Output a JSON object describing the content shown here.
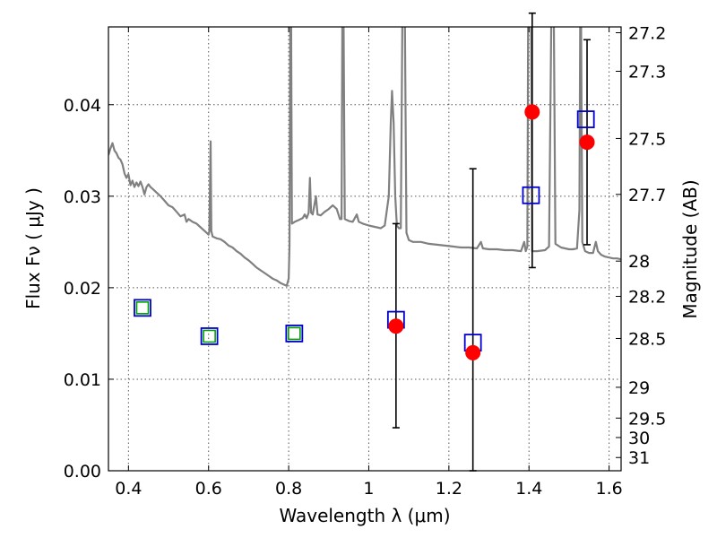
{
  "chart_data": {
    "type": "scatter",
    "title": "",
    "xlabel": "Wavelength  λ (μm)",
    "ylabel_left": "Flux  Fν  ( μJy )",
    "ylabel_right": "Magnitude (AB)",
    "xlim": [
      0.35,
      1.63
    ],
    "ylim": [
      0.0,
      0.0485
    ],
    "grid": true,
    "legend": "none",
    "x_ticks": [
      {
        "value": 0.4,
        "label": "0.4"
      },
      {
        "value": 0.6,
        "label": "0.6"
      },
      {
        "value": 0.8,
        "label": "0.8"
      },
      {
        "value": 1.0,
        "label": "1"
      },
      {
        "value": 1.2,
        "label": "1.2"
      },
      {
        "value": 1.4,
        "label": "1.4"
      },
      {
        "value": 1.6,
        "label": "1.6"
      }
    ],
    "y_ticks": [
      {
        "value": 0.0,
        "label": "0.00"
      },
      {
        "value": 0.01,
        "label": "0.01"
      },
      {
        "value": 0.02,
        "label": "0.02"
      },
      {
        "value": 0.03,
        "label": "0.03"
      },
      {
        "value": 0.04,
        "label": "0.04"
      }
    ],
    "right_ticks": [
      {
        "value": 27.2,
        "label": "27.2"
      },
      {
        "value": 27.3,
        "label": "27.3"
      },
      {
        "value": 27.5,
        "label": "27.5"
      },
      {
        "value": 27.7,
        "label": "27.7"
      },
      {
        "value": 28,
        "label": "28"
      },
      {
        "value": 28.2,
        "label": "28.2"
      },
      {
        "value": 28.5,
        "label": "28.5"
      },
      {
        "value": 29,
        "label": "29"
      },
      {
        "value": 29.5,
        "label": "29.5"
      },
      {
        "value": 30,
        "label": "30"
      },
      {
        "value": 31,
        "label": "31"
      }
    ],
    "series": [
      {
        "kind": "spectrum",
        "color": "#808080",
        "points": [
          [
            0.35,
            0.0345
          ],
          [
            0.355,
            0.0352
          ],
          [
            0.36,
            0.0358
          ],
          [
            0.365,
            0.035
          ],
          [
            0.37,
            0.0347
          ],
          [
            0.375,
            0.0342
          ],
          [
            0.38,
            0.034
          ],
          [
            0.385,
            0.0335
          ],
          [
            0.39,
            0.0325
          ],
          [
            0.395,
            0.032
          ],
          [
            0.4,
            0.0324
          ],
          [
            0.405,
            0.0312
          ],
          [
            0.41,
            0.0317
          ],
          [
            0.415,
            0.031
          ],
          [
            0.42,
            0.0315
          ],
          [
            0.425,
            0.0311
          ],
          [
            0.43,
            0.0316
          ],
          [
            0.435,
            0.031
          ],
          [
            0.44,
            0.0302
          ],
          [
            0.445,
            0.031
          ],
          [
            0.45,
            0.0313
          ],
          [
            0.455,
            0.031
          ],
          [
            0.46,
            0.0308
          ],
          [
            0.47,
            0.0304
          ],
          [
            0.48,
            0.03
          ],
          [
            0.49,
            0.0295
          ],
          [
            0.5,
            0.029
          ],
          [
            0.51,
            0.0288
          ],
          [
            0.52,
            0.0283
          ],
          [
            0.53,
            0.0278
          ],
          [
            0.54,
            0.028
          ],
          [
            0.545,
            0.0272
          ],
          [
            0.55,
            0.0275
          ],
          [
            0.56,
            0.0272
          ],
          [
            0.57,
            0.027
          ],
          [
            0.58,
            0.0266
          ],
          [
            0.59,
            0.0262
          ],
          [
            0.595,
            0.026
          ],
          [
            0.6,
            0.0258
          ],
          [
            0.602,
            0.0262
          ],
          [
            0.605,
            0.036
          ],
          [
            0.607,
            0.0262
          ],
          [
            0.61,
            0.0256
          ],
          [
            0.62,
            0.0254
          ],
          [
            0.63,
            0.0253
          ],
          [
            0.64,
            0.025
          ],
          [
            0.65,
            0.0246
          ],
          [
            0.66,
            0.0244
          ],
          [
            0.67,
            0.024
          ],
          [
            0.68,
            0.0237
          ],
          [
            0.69,
            0.0233
          ],
          [
            0.7,
            0.023
          ],
          [
            0.71,
            0.0226
          ],
          [
            0.72,
            0.0222
          ],
          [
            0.73,
            0.0219
          ],
          [
            0.74,
            0.0216
          ],
          [
            0.75,
            0.0213
          ],
          [
            0.76,
            0.021
          ],
          [
            0.77,
            0.0208
          ],
          [
            0.78,
            0.0205
          ],
          [
            0.79,
            0.0203
          ],
          [
            0.795,
            0.0202
          ],
          [
            0.8,
            0.021
          ],
          [
            0.802,
            0.0245
          ],
          [
            0.804,
            0.05
          ],
          [
            0.806,
            0.05
          ],
          [
            0.808,
            0.027
          ],
          [
            0.815,
            0.0272
          ],
          [
            0.825,
            0.0274
          ],
          [
            0.835,
            0.0276
          ],
          [
            0.84,
            0.028
          ],
          [
            0.845,
            0.0276
          ],
          [
            0.85,
            0.0282
          ],
          [
            0.853,
            0.032
          ],
          [
            0.856,
            0.0282
          ],
          [
            0.86,
            0.028
          ],
          [
            0.868,
            0.03
          ],
          [
            0.872,
            0.028
          ],
          [
            0.88,
            0.0279
          ],
          [
            0.89,
            0.0283
          ],
          [
            0.9,
            0.0286
          ],
          [
            0.91,
            0.029
          ],
          [
            0.92,
            0.0286
          ],
          [
            0.928,
            0.0275
          ],
          [
            0.932,
            0.0275
          ],
          [
            0.934,
            0.05
          ],
          [
            0.937,
            0.05
          ],
          [
            0.94,
            0.0275
          ],
          [
            0.95,
            0.0273
          ],
          [
            0.96,
            0.0272
          ],
          [
            0.97,
            0.028
          ],
          [
            0.975,
            0.0272
          ],
          [
            0.985,
            0.027
          ],
          [
            1.0,
            0.0268
          ],
          [
            1.01,
            0.0267
          ],
          [
            1.02,
            0.0266
          ],
          [
            1.03,
            0.0265
          ],
          [
            1.04,
            0.0268
          ],
          [
            1.05,
            0.03
          ],
          [
            1.055,
            0.038
          ],
          [
            1.058,
            0.0415
          ],
          [
            1.062,
            0.038
          ],
          [
            1.066,
            0.03
          ],
          [
            1.07,
            0.0268
          ],
          [
            1.075,
            0.0265
          ],
          [
            1.08,
            0.0265
          ],
          [
            1.084,
            0.05
          ],
          [
            1.09,
            0.05
          ],
          [
            1.094,
            0.026
          ],
          [
            1.1,
            0.0252
          ],
          [
            1.11,
            0.025
          ],
          [
            1.13,
            0.025
          ],
          [
            1.15,
            0.0248
          ],
          [
            1.17,
            0.0247
          ],
          [
            1.19,
            0.0246
          ],
          [
            1.21,
            0.0245
          ],
          [
            1.23,
            0.0244
          ],
          [
            1.25,
            0.0244
          ],
          [
            1.27,
            0.0243
          ],
          [
            1.28,
            0.025
          ],
          [
            1.285,
            0.0243
          ],
          [
            1.3,
            0.0242
          ],
          [
            1.32,
            0.0242
          ],
          [
            1.34,
            0.0241
          ],
          [
            1.36,
            0.0241
          ],
          [
            1.38,
            0.024
          ],
          [
            1.388,
            0.025
          ],
          [
            1.392,
            0.024
          ],
          [
            1.396,
            0.0245
          ],
          [
            1.398,
            0.05
          ],
          [
            1.405,
            0.05
          ],
          [
            1.408,
            0.024
          ],
          [
            1.42,
            0.024
          ],
          [
            1.44,
            0.0241
          ],
          [
            1.45,
            0.0245
          ],
          [
            1.456,
            0.05
          ],
          [
            1.462,
            0.05
          ],
          [
            1.466,
            0.0248
          ],
          [
            1.48,
            0.0244
          ],
          [
            1.5,
            0.0242
          ],
          [
            1.51,
            0.0242
          ],
          [
            1.52,
            0.0243
          ],
          [
            1.526,
            0.0285
          ],
          [
            1.528,
            0.05
          ],
          [
            1.53,
            0.05
          ],
          [
            1.533,
            0.025
          ],
          [
            1.54,
            0.024
          ],
          [
            1.55,
            0.0238
          ],
          [
            1.56,
            0.0238
          ],
          [
            1.567,
            0.025
          ],
          [
            1.572,
            0.024
          ],
          [
            1.58,
            0.0236
          ],
          [
            1.59,
            0.0234
          ],
          [
            1.6,
            0.0233
          ],
          [
            1.61,
            0.0232
          ],
          [
            1.62,
            0.0232
          ],
          [
            1.63,
            0.0231
          ]
        ]
      },
      {
        "kind": "markers",
        "marker": "open-square",
        "color": "#0000cc",
        "points": [
          [
            0.435,
            0.0178
          ],
          [
            0.602,
            0.0147
          ],
          [
            0.814,
            0.015
          ],
          [
            1.068,
            0.0165
          ],
          [
            1.26,
            0.014
          ],
          [
            1.405,
            0.0301
          ],
          [
            1.542,
            0.0384
          ]
        ]
      },
      {
        "kind": "markers",
        "marker": "open-square",
        "color": "#00a000",
        "points": [
          [
            0.435,
            0.0178
          ],
          [
            0.602,
            0.0147
          ],
          [
            0.814,
            0.015
          ]
        ]
      },
      {
        "kind": "markers",
        "marker": "filled-circle",
        "color": "#ff0000",
        "points": [
          [
            1.068,
            0.0158
          ],
          [
            1.26,
            0.0129
          ],
          [
            1.408,
            0.0392
          ],
          [
            1.545,
            0.0359
          ]
        ]
      },
      {
        "kind": "errorbars",
        "color": "#000000",
        "bars": [
          {
            "x": 1.068,
            "low": 0.0047,
            "high": 0.027
          },
          {
            "x": 1.26,
            "low": 0.0,
            "high": 0.033
          },
          {
            "x": 1.408,
            "low": 0.0222,
            "high": 0.05
          },
          {
            "x": 1.545,
            "low": 0.0247,
            "high": 0.0471
          }
        ]
      }
    ]
  }
}
